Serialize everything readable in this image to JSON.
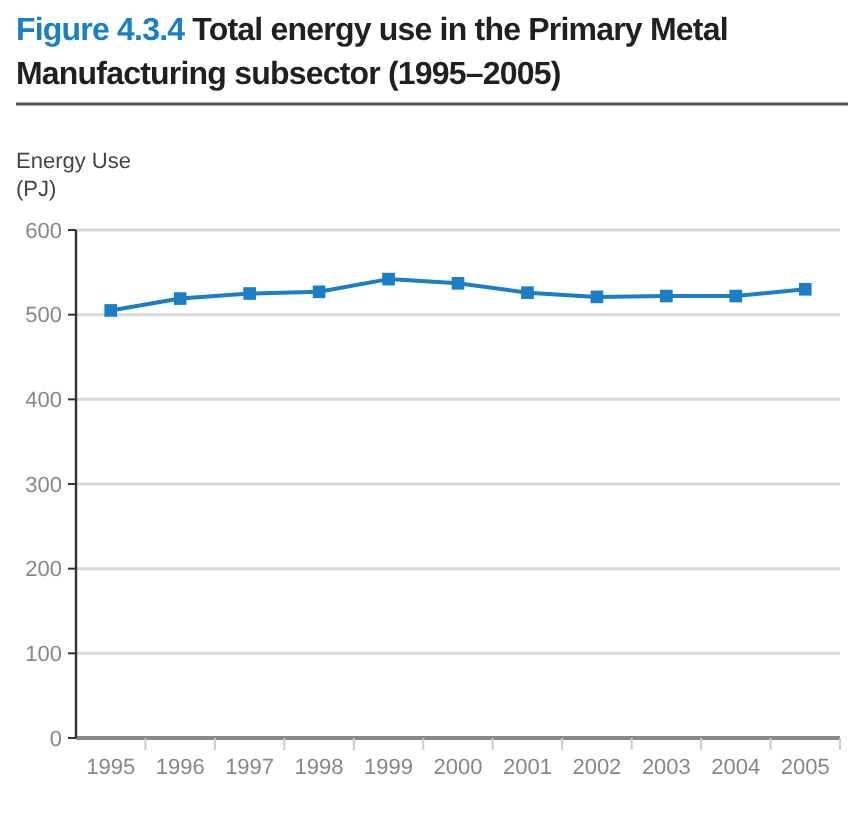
{
  "chart_data": {
    "type": "line",
    "title": "Figure 4.3.4 Total energy use in the Primary Metal Manufacturing subsector (1995–2005)",
    "ylabel": "Energy Use (PJ)",
    "categories": [
      "1995",
      "1996",
      "1997",
      "1998",
      "1999",
      "2000",
      "2001",
      "2002",
      "2003",
      "2004",
      "2005"
    ],
    "series": [
      {
        "color": "#1a7fc4",
        "values": [
          505,
          519,
          525,
          527,
          542,
          537,
          526,
          521,
          522,
          522,
          530
        ]
      }
    ],
    "ylim": [
      0,
      600
    ],
    "yticks": [
      0,
      100,
      200,
      300,
      400,
      500,
      600
    ],
    "grid": "y",
    "marker": "square",
    "line_style": "solid"
  }
}
